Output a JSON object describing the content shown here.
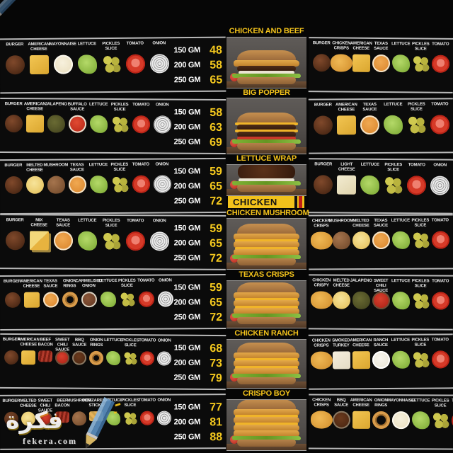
{
  "watermark": {
    "logo_text": "فكرة",
    "site_text": "fekera.com"
  },
  "colors": {
    "accent_yellow": "#f2c21b",
    "price_yellow": "#f5c91e",
    "label_white": "#ececec"
  },
  "center": {
    "chicken_banner": "CHICKEN",
    "items": [
      {
        "title": "CHICKEN AND BEEF",
        "burger_style": "beef-single"
      },
      {
        "title": "BIG POPPER",
        "burger_style": "beef-double"
      },
      {
        "title": "LETTUCE WRAP",
        "burger_style": "lettuce-wrap"
      },
      {
        "title": "CHICKEN MUSHROOM",
        "burger_style": "crispy-stack-3"
      },
      {
        "title": "TEXAS CRISPS",
        "burger_style": "crispy-stack-3"
      },
      {
        "title": "CHICKEN RANCH",
        "burger_style": "crispy-stack-3"
      },
      {
        "title": "CRISPO BOY",
        "burger_style": "crispy-stack-4"
      }
    ]
  },
  "left_rows": [
    {
      "ingredients": [
        {
          "label": "BURGER",
          "icon": "burger-patty"
        },
        {
          "label": "AMERICAN CHEESE",
          "icon": "cheese-square"
        },
        {
          "label": "MAYONNAISE",
          "icon": "mayonnaise"
        },
        {
          "label": "LETTUCE",
          "icon": "lettuce"
        },
        {
          "label": "PICKLES SLICE",
          "icon": "pickles-slice"
        },
        {
          "label": "TOMATO",
          "icon": "tomato"
        },
        {
          "label": "ONION",
          "icon": "onion"
        }
      ],
      "sizes": [
        {
          "weight": "150 GM",
          "price": "48"
        },
        {
          "weight": "200 GM",
          "price": "58"
        },
        {
          "weight": "250 GM",
          "price": "65"
        }
      ]
    },
    {
      "ingredients": [
        {
          "label": "BURGER",
          "icon": "burger-patty"
        },
        {
          "label": "AMERICAN CHEESE",
          "icon": "cheese-square"
        },
        {
          "label": "JALAPENO",
          "icon": "jalapeno"
        },
        {
          "label": "BUFFALO SAUCE",
          "icon": "buffalo-sauce"
        },
        {
          "label": "LETTUCE",
          "icon": "lettuce"
        },
        {
          "label": "PICKLES SLICE",
          "icon": "pickles-slice"
        },
        {
          "label": "TOMATO",
          "icon": "tomato"
        },
        {
          "label": "ONION",
          "icon": "onion"
        }
      ],
      "sizes": [
        {
          "weight": "150 GM",
          "price": "58"
        },
        {
          "weight": "200 GM",
          "price": "63"
        },
        {
          "weight": "250 GM",
          "price": "69"
        }
      ]
    },
    {
      "ingredients": [
        {
          "label": "BURGER",
          "icon": "burger-patty"
        },
        {
          "label": "MELTED CHEESE",
          "icon": "melted-cheese"
        },
        {
          "label": "MUSHROOM",
          "icon": "mushroom"
        },
        {
          "label": "TEXAS SAUCE",
          "icon": "texas-sauce"
        },
        {
          "label": "LETTUCE",
          "icon": "lettuce"
        },
        {
          "label": "PICKLES SLICE",
          "icon": "pickles-slice"
        },
        {
          "label": "TOMATO",
          "icon": "tomato"
        },
        {
          "label": "ONION",
          "icon": "onion"
        }
      ],
      "sizes": [
        {
          "weight": "150 GM",
          "price": "59"
        },
        {
          "weight": "200 GM",
          "price": "65"
        },
        {
          "weight": "250 GM",
          "price": "72"
        }
      ]
    },
    {
      "ingredients": [
        {
          "label": "BURGER",
          "icon": "burger-patty"
        },
        {
          "label": "MIX CHEESE",
          "icon": "mix-cheese"
        },
        {
          "label": "TEXAS SAUCE",
          "icon": "texas-sauce"
        },
        {
          "label": "LETTUCE",
          "icon": "lettuce"
        },
        {
          "label": "PICKLES SLICE",
          "icon": "pickles-slice"
        },
        {
          "label": "TOMATO",
          "icon": "tomato"
        },
        {
          "label": "ONION",
          "icon": "onion"
        }
      ],
      "sizes": [
        {
          "weight": "150 GM",
          "price": "59"
        },
        {
          "weight": "200 GM",
          "price": "65"
        },
        {
          "weight": "250 GM",
          "price": "72"
        }
      ]
    },
    {
      "ingredients": [
        {
          "label": "BURGER",
          "icon": "burger-patty"
        },
        {
          "label": "AMERICAN CHEESE",
          "icon": "cheese-square"
        },
        {
          "label": "TEXAS SAUCE",
          "icon": "texas-sauce"
        },
        {
          "label": "ONION RINGS",
          "icon": "onion-rings"
        },
        {
          "label": "CARMELISED ONION",
          "icon": "carmelised-onion"
        },
        {
          "label": "LETTUCE",
          "icon": "lettuce"
        },
        {
          "label": "PICKLES SLICE",
          "icon": "pickles-slice"
        },
        {
          "label": "TOMATO",
          "icon": "tomato"
        },
        {
          "label": "ONION",
          "icon": "onion"
        }
      ],
      "sizes": [
        {
          "weight": "150 GM",
          "price": "59"
        },
        {
          "weight": "200 GM",
          "price": "65"
        },
        {
          "weight": "250 GM",
          "price": "72"
        }
      ]
    },
    {
      "ingredients": [
        {
          "label": "BURGER",
          "icon": "burger-patty"
        },
        {
          "label": "AMERICAN CHEESE",
          "icon": "cheese-square"
        },
        {
          "label": "BEEF BACON",
          "icon": "beef-bacon"
        },
        {
          "label": "SWEET CHILI SAUCE",
          "icon": "sweet-chili-sauce"
        },
        {
          "label": "BBQ SAUCE",
          "icon": "bbq-sauce"
        },
        {
          "label": "ONION RINGS",
          "icon": "onion-rings"
        },
        {
          "label": "LETTUCE",
          "icon": "lettuce"
        },
        {
          "label": "PICKLES SLICE",
          "icon": "pickles-slice"
        },
        {
          "label": "TOMATO",
          "icon": "tomato"
        },
        {
          "label": "ONION",
          "icon": "onion"
        }
      ],
      "sizes": [
        {
          "weight": "150 GM",
          "price": "68"
        },
        {
          "weight": "200 GM",
          "price": "73"
        },
        {
          "weight": "250 GM",
          "price": "79"
        }
      ]
    },
    {
      "ingredients": [
        {
          "label": "BURGER",
          "icon": "burger-patty"
        },
        {
          "label": "MELTED CHEESE",
          "icon": "melted-cheese"
        },
        {
          "label": "SWEET CHILI SAUCE",
          "icon": "sweet-chili-sauce"
        },
        {
          "label": "BEEF BACON",
          "icon": "beef-bacon"
        },
        {
          "label": "MUSHROOM",
          "icon": "mushroom"
        },
        {
          "label": "MOZZARELLA STICKS",
          "icon": "mozzarella-sticks"
        },
        {
          "label": "LETTUCE",
          "icon": "lettuce"
        },
        {
          "label": "PICKLES SLICE",
          "icon": "pickles-slice"
        },
        {
          "label": "TOMATO",
          "icon": "tomato"
        },
        {
          "label": "ONION",
          "icon": "onion"
        }
      ],
      "sizes": [
        {
          "weight": "150 GM",
          "price": "77"
        },
        {
          "weight": "200 GM",
          "price": "81"
        },
        {
          "weight": "250 GM",
          "price": "88"
        }
      ]
    }
  ],
  "right_rows": [
    {
      "ingredients": [
        {
          "label": "BURGER",
          "icon": "burger-patty"
        },
        {
          "label": "CHICKEN CRISPS",
          "icon": "chicken-crisps"
        },
        {
          "label": "AMERICAN CHEESE",
          "icon": "cheese-square"
        },
        {
          "label": "TEXAS SAUCE",
          "icon": "texas-sauce"
        },
        {
          "label": "LETTUCE",
          "icon": "lettuce"
        },
        {
          "label": "PICKLES SLICE",
          "icon": "pickles-slice"
        },
        {
          "label": "TOMATO",
          "icon": "tomato"
        }
      ]
    },
    {
      "ingredients": [
        {
          "label": "BURGER",
          "icon": "burger-patty"
        },
        {
          "label": "AMERICAN CHEESE",
          "icon": "cheese-square"
        },
        {
          "label": "TEXAS SAUCE",
          "icon": "texas-sauce"
        },
        {
          "label": "LETTUCE",
          "icon": "lettuce"
        },
        {
          "label": "PICKLES SLICE",
          "icon": "pickles-slice"
        },
        {
          "label": "TOMATO",
          "icon": "tomato"
        }
      ]
    },
    {
      "ingredients": [
        {
          "label": "BURGER",
          "icon": "burger-patty"
        },
        {
          "label": "LIGHT CHEESE",
          "icon": "light-cheese"
        },
        {
          "label": "LETTUCE",
          "icon": "lettuce"
        },
        {
          "label": "PICKLES SLICE",
          "icon": "pickles-slice"
        },
        {
          "label": "TOMATO",
          "icon": "tomato"
        },
        {
          "label": "ONION",
          "icon": "onion"
        }
      ]
    },
    {
      "ingredients": [
        {
          "label": "CHICKEN CRISPS",
          "icon": "chicken-crisps"
        },
        {
          "label": "MUSHROOM",
          "icon": "mushroom"
        },
        {
          "label": "MELTED CHEESE",
          "icon": "melted-cheese"
        },
        {
          "label": "TEXAS SAUCE",
          "icon": "texas-sauce"
        },
        {
          "label": "LETTUCE",
          "icon": "lettuce"
        },
        {
          "label": "PICKLES SLICE",
          "icon": "pickles-slice"
        },
        {
          "label": "TOMATO",
          "icon": "tomato"
        }
      ]
    },
    {
      "ingredients": [
        {
          "label": "CHICKEN CRISPY",
          "icon": "chicken-crisps"
        },
        {
          "label": "MELTED CHEESE",
          "icon": "melted-cheese"
        },
        {
          "label": "JALAPENO",
          "icon": "jalapeno"
        },
        {
          "label": "SWEET CHILI SAUCE",
          "icon": "sweet-chili-sauce"
        },
        {
          "label": "LETTUCE",
          "icon": "lettuce"
        },
        {
          "label": "PICKLES SLICE",
          "icon": "pickles-slice"
        },
        {
          "label": "TOMATO",
          "icon": "tomato"
        }
      ]
    },
    {
      "ingredients": [
        {
          "label": "CHICKEN CRISPS",
          "icon": "chicken-crisps"
        },
        {
          "label": "SMOKED TURKEY",
          "icon": "smoked-turkey"
        },
        {
          "label": "AMERICAN CHEESE",
          "icon": "cheese-square"
        },
        {
          "label": "RANCH SAUCE",
          "icon": "ranch-sauce"
        },
        {
          "label": "LETTUCE",
          "icon": "lettuce"
        },
        {
          "label": "PICKLES SLICE",
          "icon": "pickles-slice"
        },
        {
          "label": "TOMATO",
          "icon": "tomato"
        }
      ]
    },
    {
      "ingredients": [
        {
          "label": "CHICKEN CRISPS",
          "icon": "chicken-crisps"
        },
        {
          "label": "BBQ SAUCE",
          "icon": "bbq-sauce"
        },
        {
          "label": "AMERICAN CHEESE",
          "icon": "cheese-square"
        },
        {
          "label": "ONION RINGS",
          "icon": "onion-rings"
        },
        {
          "label": "MAYONNAISE",
          "icon": "mayonnaise"
        },
        {
          "label": "LETTUCE",
          "icon": "lettuce"
        },
        {
          "label": "PICKLES SLICE",
          "icon": "pickles-slice"
        },
        {
          "label": "TOMATO",
          "icon": "tomato"
        }
      ]
    }
  ]
}
